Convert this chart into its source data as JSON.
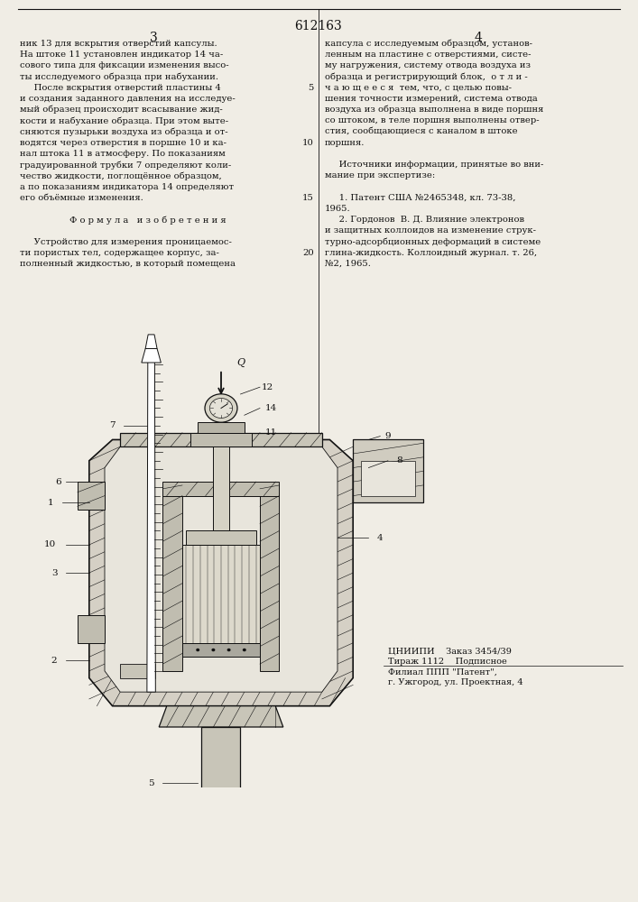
{
  "patent_number": "612163",
  "page_left": "3",
  "page_right": "4",
  "background_color": "#f0ede5",
  "text_color": "#111111",
  "col1_text": [
    "ник 13 для вскрытия отверстий капсулы.",
    "На штоке 11 установлен индикатор 14 ча-",
    "сового типа для фиксации изменения высо-",
    "ты исследуемого образца при набухании.",
    "     После вскрытия отверстий пластины 4",
    "и создания заданного давления на исследуе-",
    "мый образец происходит всасывание жид-",
    "кости и набухание образца. При этом выте-",
    "сняются пузырьки воздуха из образца и от-",
    "водятся через отверстия в поршне 10 и ка-",
    "нал штока 11 в атмосферу. По показаниям",
    "градуированной трубки 7 определяют коли-",
    "чество жидкости, поглощённое образцом,",
    "а по показаниям индикатора 14 определяют",
    "его объёмные изменения.",
    "",
    "Ф о р м у л а   и з о б р е т е н и я",
    "",
    "     Устройство для измерения проницаемос-",
    "ти пористых тел, содержащее корпус, за-",
    "полненный жидкостью, в который помещена"
  ],
  "col2_text": [
    "капсула с исследуемым образцом, установ-",
    "ленным на пластине с отверстиями, систе-",
    "му нагружения, систему отвода воздуха из",
    "образца и регистрирующий блок,  о т л и -",
    "ч а ю щ е е с я  тем, что, с целью повы-",
    "шения точности измерений, система отвода",
    "воздуха из образца выполнена в виде поршня",
    "со штоком, в теле поршня выполнены отвер-",
    "стия, сообщающиеся с каналом в штоке",
    "поршня.",
    "",
    "     Источники информации, принятые во вни-",
    "мание при экспертизе:",
    "",
    "     1. Патент США №2465348, кл. 73-38,",
    "1965.",
    "     2. Гордонов  В. Д. Влияние электронов",
    "и защитных коллоидов на изменение струк-",
    "турно-адсорбционных деформаций в системе",
    "глина-жидкость. Коллоидный журнал. т. 26,",
    "№2, 1965."
  ],
  "line_numbers": {
    "4": 5,
    "9": 10,
    "14": 15,
    "19": 20
  },
  "footer_lines": [
    "ЦНИИПИ    Заказ 3454/39",
    "Тираж 1112    Подписное",
    "Филиал ППП \"Патент\",",
    "г. Ужгород, ул. Проектная, 4"
  ],
  "hatch_color": "#555555",
  "line_color": "#111111"
}
